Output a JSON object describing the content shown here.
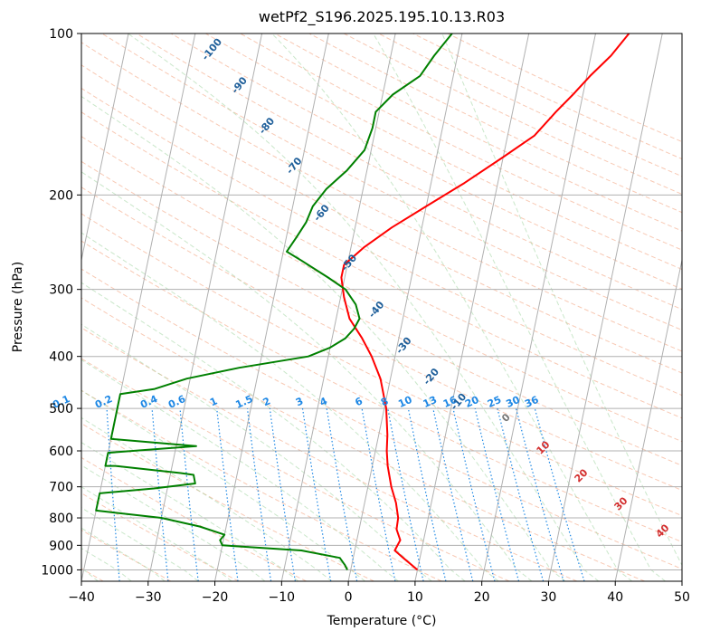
{
  "chart_data": {
    "type": "line",
    "title": "wetPf2_S196.2025.195.10.13.R03",
    "xlabel": "Temperature (°C)",
    "ylabel": "Pressure (hPa)",
    "xlim": [
      -40,
      50
    ],
    "ylim": [
      1050,
      100
    ],
    "y_scale": "log",
    "grid": true,
    "x_ticks": [
      -40,
      -30,
      -20,
      -10,
      0,
      10,
      20,
      30,
      40,
      50
    ],
    "y_ticks": [
      1000,
      900,
      800,
      700,
      600,
      500,
      400,
      300,
      200,
      100
    ],
    "series": [
      {
        "color": "#ff0000",
        "points": [
          [
            10.0,
            1000
          ],
          [
            7.5,
            950
          ],
          [
            6.0,
            920
          ],
          [
            6.5,
            880
          ],
          [
            5.6,
            840
          ],
          [
            5.5,
            800
          ],
          [
            4.7,
            750
          ],
          [
            3.5,
            700
          ],
          [
            2.3,
            640
          ],
          [
            1.7,
            600
          ],
          [
            1.3,
            560
          ],
          [
            0.3,
            500
          ],
          [
            -1.5,
            440
          ],
          [
            -3.5,
            400
          ],
          [
            -5.5,
            370
          ],
          [
            -8.0,
            340
          ],
          [
            -9.5,
            310
          ],
          [
            -10.5,
            285
          ],
          [
            -10.5,
            270
          ],
          [
            -8.0,
            250
          ],
          [
            -4.5,
            230
          ],
          [
            0.0,
            210
          ],
          [
            5.0,
            190
          ],
          [
            10.0,
            170
          ],
          [
            14.0,
            155
          ],
          [
            16.5,
            140
          ],
          [
            18.5,
            130
          ],
          [
            20.5,
            120
          ],
          [
            23.0,
            110
          ],
          [
            25.0,
            100
          ]
        ]
      },
      {
        "color": "#008000",
        "points": [
          [
            -0.5,
            1000
          ],
          [
            -1.0,
            980
          ],
          [
            -2.0,
            950
          ],
          [
            -8.0,
            920
          ],
          [
            -20.0,
            900
          ],
          [
            -20.5,
            880
          ],
          [
            -20.0,
            860
          ],
          [
            -24.0,
            830
          ],
          [
            -30.0,
            800
          ],
          [
            -38.0,
            780
          ],
          [
            -40.0,
            775
          ],
          [
            -40.0,
            720
          ],
          [
            -32.0,
            705
          ],
          [
            -26.0,
            690
          ],
          [
            -26.5,
            665
          ],
          [
            -28.5,
            660
          ],
          [
            -38.5,
            640
          ],
          [
            -40.0,
            640
          ],
          [
            -40.0,
            605
          ],
          [
            -27.0,
            588
          ],
          [
            -40.0,
            570
          ],
          [
            -40.0,
            470
          ],
          [
            -35.0,
            460
          ],
          [
            -30.5,
            440
          ],
          [
            -23.0,
            420
          ],
          [
            -13.0,
            400
          ],
          [
            -10.0,
            385
          ],
          [
            -8.0,
            370
          ],
          [
            -7.0,
            355
          ],
          [
            -6.5,
            340
          ],
          [
            -7.5,
            320
          ],
          [
            -9.5,
            300
          ],
          [
            -12.5,
            285
          ],
          [
            -17.0,
            265
          ],
          [
            -19.5,
            255
          ],
          [
            -18.5,
            240
          ],
          [
            -17.5,
            225
          ],
          [
            -17.0,
            210
          ],
          [
            -15.5,
            195
          ],
          [
            -13.0,
            180
          ],
          [
            -11.0,
            165
          ],
          [
            -10.5,
            150
          ],
          [
            -10.5,
            140
          ],
          [
            -8.5,
            130
          ],
          [
            -5.0,
            120
          ],
          [
            -3.5,
            110
          ],
          [
            -1.5,
            100
          ]
        ]
      }
    ],
    "dry_adiabat_labels": [
      "-100",
      "-90",
      "-80",
      "-70",
      "-60",
      "-50",
      "-40",
      "-30",
      "-20",
      "-10"
    ],
    "mixing_ratio_labels": [
      "0.1",
      "0.2",
      "0.4",
      "0.6",
      "1",
      "1.5",
      "2",
      "3",
      "4",
      "6",
      "8",
      "10",
      "13",
      "16",
      "20",
      "25",
      "30",
      "36"
    ],
    "moist_adiabat_labels": [
      "0",
      "10",
      "20",
      "30",
      "40"
    ],
    "colors": {
      "isotherm": "#b0b0b0",
      "dry_adiabat": "#f4a582",
      "moist_adiabat": "#9fd49f",
      "mixing_ratio": "#1e88e5",
      "dry_adiabat_label": "#1f5f9a",
      "moist_adiabat_label": "#d32f2f",
      "zero_label": "#777777"
    }
  }
}
